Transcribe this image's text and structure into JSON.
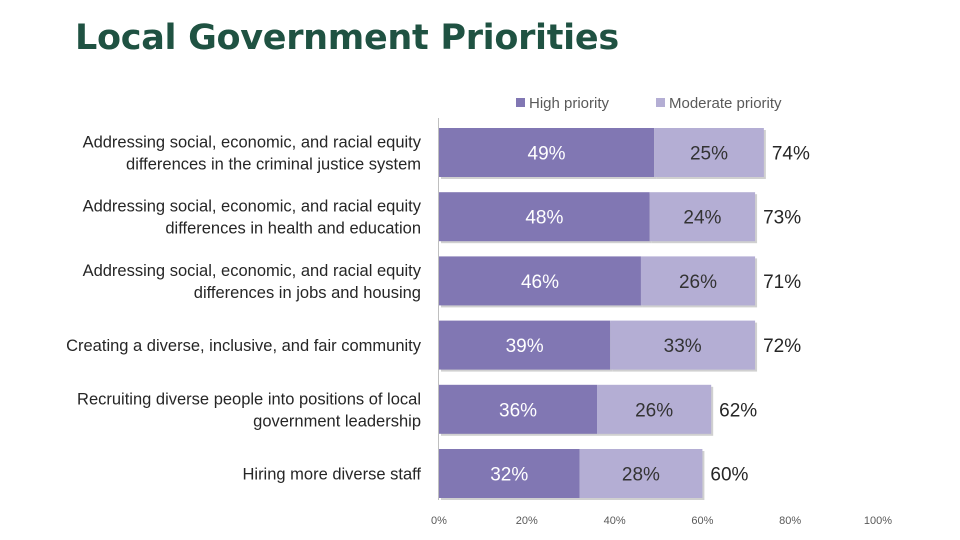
{
  "title": "Local Government Priorities",
  "chart_data": {
    "type": "bar",
    "orientation": "horizontal",
    "stacked": true,
    "categories": [
      [
        "Addressing social, economic, and racial equity",
        "differences in the criminal justice system"
      ],
      [
        "Addressing social, economic, and racial equity",
        "differences in health and education"
      ],
      [
        "Addressing social, economic, and racial equity",
        "differences in jobs and housing"
      ],
      [
        "Creating a diverse, inclusive, and fair community"
      ],
      [
        "Recruiting diverse people into positions of local",
        "government leadership"
      ],
      [
        "Hiring more diverse staff"
      ]
    ],
    "series": [
      {
        "name": "High priority",
        "color": "#8177b3",
        "label_color": "#ffffff",
        "values": [
          49,
          48,
          46,
          39,
          36,
          32
        ]
      },
      {
        "name": "Moderate priority",
        "color": "#b4aed4",
        "label_color": "#333333",
        "values": [
          25,
          24,
          26,
          33,
          26,
          28
        ]
      }
    ],
    "totals": [
      74,
      73,
      71,
      72,
      62,
      60
    ],
    "value_suffix": "%",
    "xlim": [
      0,
      100
    ],
    "xticks": [
      "0%",
      "20%",
      "40%",
      "60%",
      "80%",
      "100%"
    ],
    "legend_position": "top",
    "grid": false
  }
}
